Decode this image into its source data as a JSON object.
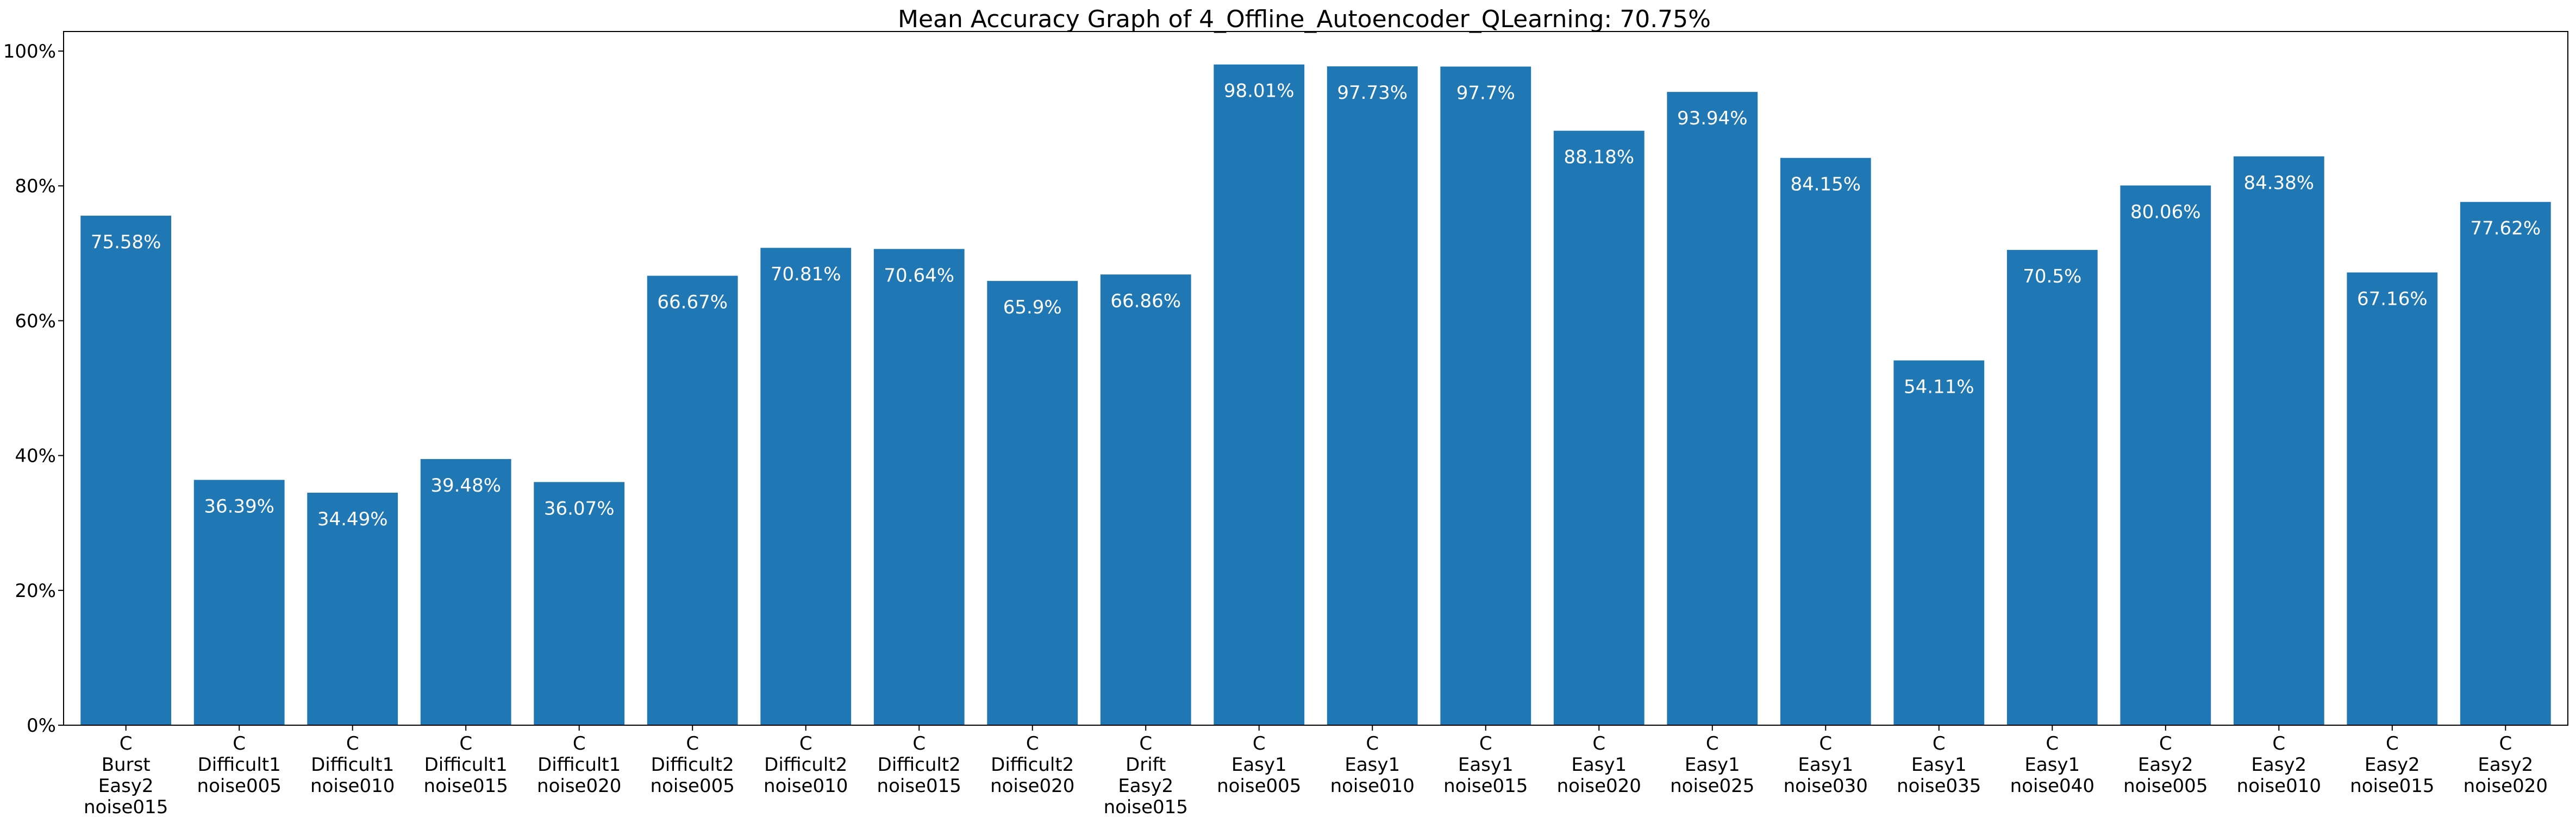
{
  "chart_data": {
    "type": "bar",
    "title": "Mean Accuracy Graph of 4_Offline_Autoencoder_QLearning: 70.75%",
    "xlabel": "",
    "ylabel": "",
    "ylim": [
      0,
      100
    ],
    "yticks": [
      {
        "value": 0,
        "label": "0%"
      },
      {
        "value": 20,
        "label": "20%"
      },
      {
        "value": 40,
        "label": "40%"
      },
      {
        "value": 60,
        "label": "60%"
      },
      {
        "value": 80,
        "label": "80%"
      },
      {
        "value": 100,
        "label": "100%"
      }
    ],
    "grid": false,
    "bar_color": "#1f77b4",
    "value_label_color": "#ffffff",
    "categories": [
      [
        "C",
        "Burst",
        "Easy2",
        "noise015"
      ],
      [
        "C",
        "Difficult1",
        "noise005"
      ],
      [
        "C",
        "Difficult1",
        "noise010"
      ],
      [
        "C",
        "Difficult1",
        "noise015"
      ],
      [
        "C",
        "Difficult1",
        "noise020"
      ],
      [
        "C",
        "Difficult2",
        "noise005"
      ],
      [
        "C",
        "Difficult2",
        "noise010"
      ],
      [
        "C",
        "Difficult2",
        "noise015"
      ],
      [
        "C",
        "Difficult2",
        "noise020"
      ],
      [
        "C",
        "Drift",
        "Easy2",
        "noise015"
      ],
      [
        "C",
        "Easy1",
        "noise005"
      ],
      [
        "C",
        "Easy1",
        "noise010"
      ],
      [
        "C",
        "Easy1",
        "noise015"
      ],
      [
        "C",
        "Easy1",
        "noise020"
      ],
      [
        "C",
        "Easy1",
        "noise025"
      ],
      [
        "C",
        "Easy1",
        "noise030"
      ],
      [
        "C",
        "Easy1",
        "noise035"
      ],
      [
        "C",
        "Easy1",
        "noise040"
      ],
      [
        "C",
        "Easy2",
        "noise005"
      ],
      [
        "C",
        "Easy2",
        "noise010"
      ],
      [
        "C",
        "Easy2",
        "noise015"
      ],
      [
        "C",
        "Easy2",
        "noise020"
      ]
    ],
    "values": [
      75.58,
      36.39,
      34.49,
      39.48,
      36.07,
      66.67,
      70.81,
      70.64,
      65.9,
      66.86,
      98.01,
      97.73,
      97.7,
      88.18,
      93.94,
      84.15,
      54.11,
      70.5,
      80.06,
      84.38,
      67.16,
      77.62
    ],
    "value_labels": [
      "75.58%",
      "36.39%",
      "34.49%",
      "39.48%",
      "36.07%",
      "66.67%",
      "70.81%",
      "70.64%",
      "65.9%",
      "66.86%",
      "98.01%",
      "97.73%",
      "97.7%",
      "88.18%",
      "93.94%",
      "84.15%",
      "54.11%",
      "70.5%",
      "80.06%",
      "84.38%",
      "67.16%",
      "77.62%"
    ]
  }
}
